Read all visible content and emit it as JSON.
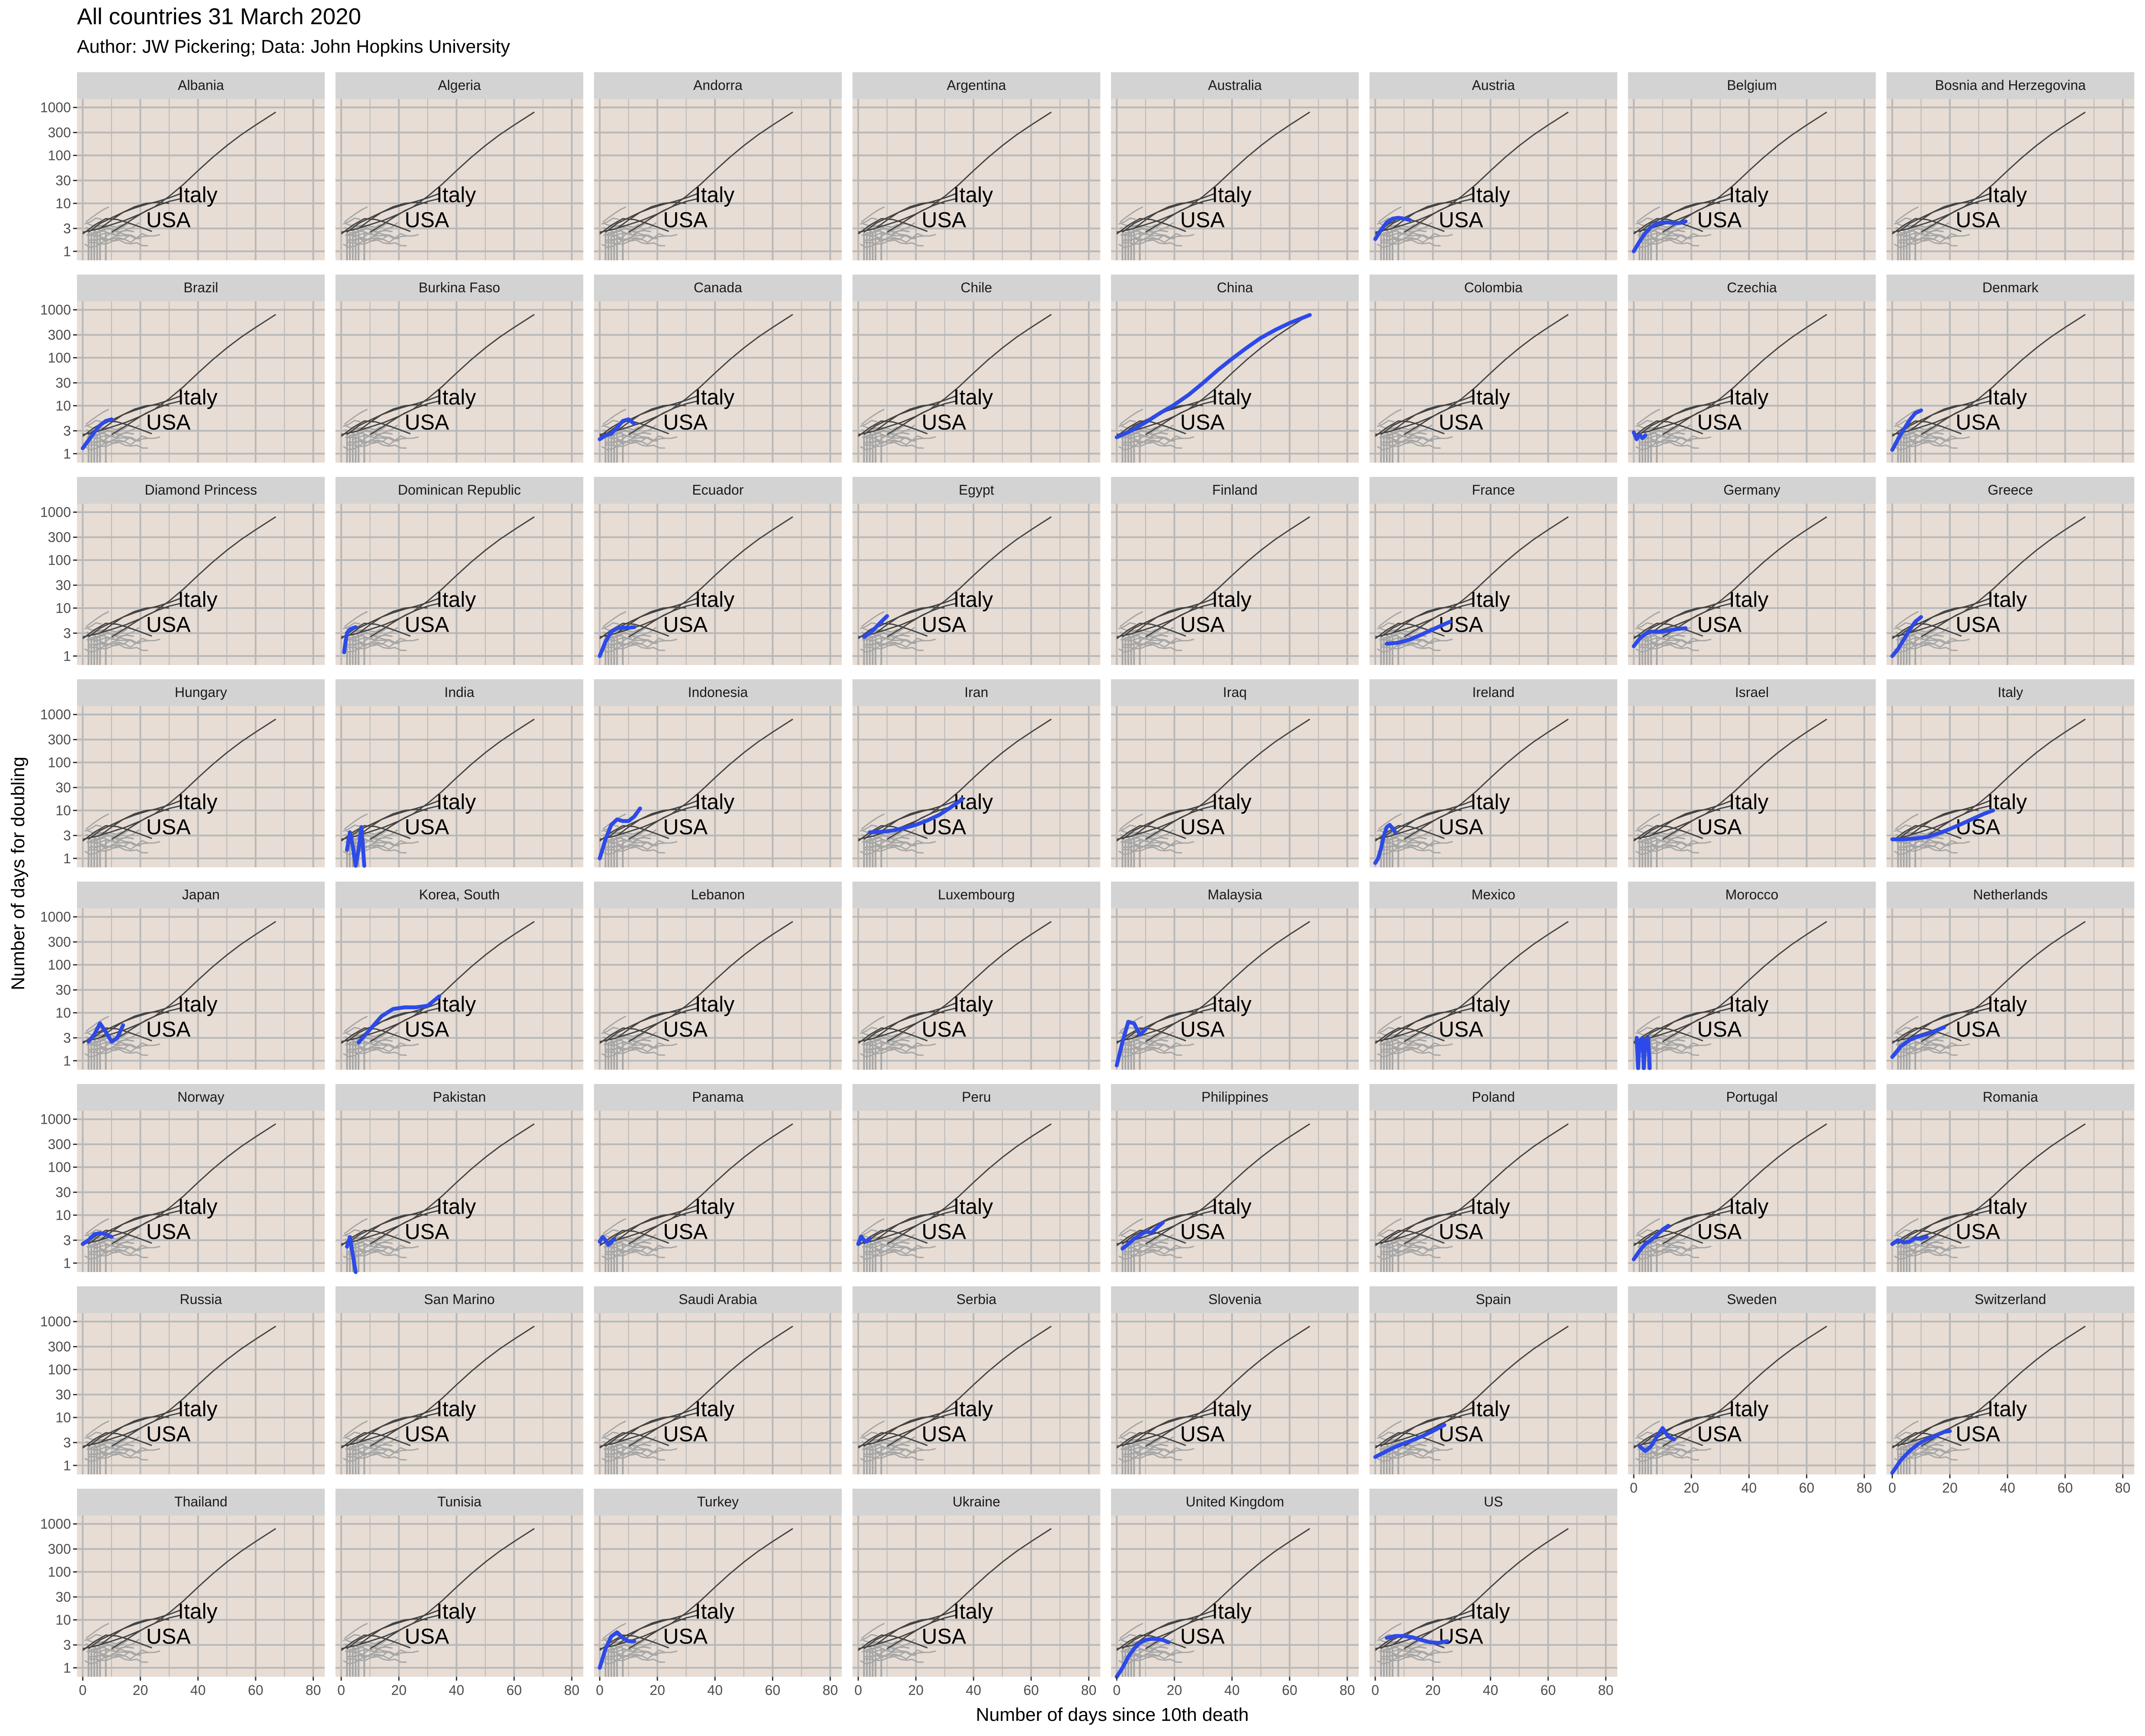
{
  "chart_data": {
    "type": "line",
    "title": "All countries 31 March 2020",
    "subtitle": "Author: JW Pickering; Data: John Hopkins University",
    "xlabel": "Number of days since 10th death",
    "ylabel": "Number of days for doubling",
    "xlim": [
      -2,
      84
    ],
    "x_ticks": [
      0,
      20,
      40,
      60,
      80
    ],
    "y_scale": "log10",
    "ylim": [
      0.65,
      1500
    ],
    "y_ticks": [
      1,
      3,
      10,
      30,
      100,
      300,
      1000
    ],
    "grid": true,
    "legend": "none",
    "colors": {
      "panel_background": "#e7ddd5",
      "grid": "#b8b8b8",
      "strip_background": "#d3d3d3",
      "highlight": "#2d4ae8",
      "reference_lines": "#444444",
      "other_countries": "#a6a6a6"
    },
    "annotations": [
      {
        "text": "Italy",
        "x": 33,
        "y": 14
      },
      {
        "text": "USA",
        "x": 22,
        "y": 4.2
      }
    ],
    "reference_series": [
      {
        "name": "Italy",
        "x": [
          0,
          5,
          10,
          15,
          20,
          25,
          30,
          35,
          40,
          45,
          50,
          55,
          60,
          67
        ],
        "y": [
          2.5,
          2.9,
          3.6,
          4.5,
          6,
          8.5,
          14,
          25,
          48,
          90,
          160,
          270,
          430,
          800
        ]
      },
      {
        "name": "USA",
        "x": [
          0,
          4,
          8,
          12,
          16,
          20,
          24
        ],
        "y": [
          2.3,
          3.5,
          4.8,
          4.6,
          3.9,
          3.2,
          2.6
        ]
      },
      {
        "name": "",
        "x": [
          2,
          6,
          10,
          14,
          18,
          22,
          26,
          30,
          34
        ],
        "y": [
          2.5,
          3.8,
          5,
          6.5,
          8,
          9.5,
          11,
          13,
          16
        ]
      },
      {
        "name": "",
        "x": [
          6,
          10,
          14,
          18,
          22,
          26,
          30
        ],
        "y": [
          3,
          4.5,
          6.5,
          8.5,
          10,
          10.5,
          10
        ]
      },
      {
        "name": "",
        "x": [
          10,
          14,
          18,
          22,
          26,
          30,
          34
        ],
        "y": [
          2.5,
          3.5,
          5,
          7,
          9,
          11,
          12.5
        ]
      }
    ],
    "panels": [
      {
        "country": "Albania",
        "x": [],
        "y": []
      },
      {
        "country": "Algeria",
        "x": [],
        "y": []
      },
      {
        "country": "Andorra",
        "x": [],
        "y": []
      },
      {
        "country": "Argentina",
        "x": [],
        "y": []
      },
      {
        "country": "Australia",
        "x": [],
        "y": []
      },
      {
        "country": "Austria",
        "x": [
          0,
          2,
          4,
          6,
          8,
          10,
          12
        ],
        "y": [
          1.8,
          2.8,
          4,
          4.8,
          5,
          4.8,
          4.5
        ]
      },
      {
        "country": "Belgium",
        "x": [
          0,
          2,
          4,
          6,
          8,
          10,
          12,
          14,
          16,
          18
        ],
        "y": [
          1,
          1.6,
          2.4,
          3.2,
          3.8,
          4,
          4,
          3.9,
          3.9,
          4.2
        ]
      },
      {
        "country": "Bosnia and Herzegovina",
        "x": [],
        "y": []
      },
      {
        "country": "Brazil",
        "x": [
          0,
          2,
          4,
          6,
          8,
          10
        ],
        "y": [
          1.3,
          1.9,
          2.8,
          3.9,
          4.8,
          5.2
        ]
      },
      {
        "country": "Burkina Faso",
        "x": [],
        "y": []
      },
      {
        "country": "Canada",
        "x": [
          0,
          2,
          4,
          6,
          8,
          10,
          12
        ],
        "y": [
          2,
          2.4,
          2.6,
          3.5,
          4.8,
          5.2,
          4.2
        ]
      },
      {
        "country": "Chile",
        "x": [],
        "y": []
      },
      {
        "country": "China",
        "x": [
          0,
          5,
          10,
          15,
          20,
          25,
          30,
          35,
          40,
          45,
          50,
          55,
          60,
          67
        ],
        "y": [
          2.2,
          3,
          4.5,
          7,
          10.5,
          17,
          30,
          55,
          95,
          160,
          260,
          380,
          530,
          780
        ]
      },
      {
        "country": "Colombia",
        "x": [],
        "y": []
      },
      {
        "country": "Czechia",
        "x": [
          0,
          1,
          2,
          3,
          4
        ],
        "y": [
          2.8,
          2,
          2.5,
          2.1,
          2.4
        ]
      },
      {
        "country": "Denmark",
        "x": [
          0,
          2,
          4,
          6,
          8,
          10
        ],
        "y": [
          1.2,
          2,
          3.2,
          5,
          7,
          8
        ]
      },
      {
        "country": "Diamond Princess",
        "x": [],
        "y": []
      },
      {
        "country": "Dominican Republic",
        "x": [
          1,
          1.5,
          2,
          3,
          4,
          5
        ],
        "y": [
          1.2,
          2,
          3,
          3.6,
          3.8,
          4
        ]
      },
      {
        "country": "Ecuador",
        "x": [
          0,
          2,
          4,
          6,
          8,
          10,
          12
        ],
        "y": [
          1,
          2,
          3.2,
          3.8,
          3.9,
          3.9,
          4
        ]
      },
      {
        "country": "Egypt",
        "x": [
          2,
          4,
          6,
          8,
          10
        ],
        "y": [
          2.5,
          3,
          3.9,
          5.2,
          6.8
        ]
      },
      {
        "country": "Finland",
        "x": [],
        "y": []
      },
      {
        "country": "France",
        "x": [
          4,
          8,
          12,
          16,
          20,
          24,
          26
        ],
        "y": [
          1.8,
          1.9,
          2.2,
          2.8,
          3.6,
          4.6,
          5.2
        ]
      },
      {
        "country": "Germany",
        "x": [
          0,
          2,
          4,
          6,
          8,
          10,
          12,
          14,
          16,
          18
        ],
        "y": [
          1.6,
          2.3,
          2.9,
          3.2,
          3.2,
          3.2,
          3.4,
          3.6,
          3.7,
          3.8
        ]
      },
      {
        "country": "Greece",
        "x": [
          0,
          2,
          4,
          6,
          8,
          10
        ],
        "y": [
          1,
          1.4,
          2.2,
          3.5,
          5.2,
          6.5
        ]
      },
      {
        "country": "Hungary",
        "x": [],
        "y": []
      },
      {
        "country": "India",
        "x": [
          2,
          3,
          4,
          5,
          6,
          7,
          8
        ],
        "y": [
          1.5,
          3.5,
          1.8,
          0.7,
          1.5,
          4.5,
          0.7
        ]
      },
      {
        "country": "Indonesia",
        "x": [
          0,
          2,
          4,
          6,
          8,
          10,
          12,
          14
        ],
        "y": [
          1,
          2.5,
          5,
          6.5,
          6,
          6,
          7.5,
          11
        ]
      },
      {
        "country": "Iran",
        "x": [
          4,
          8,
          12,
          16,
          20,
          24,
          28,
          32,
          36
        ],
        "y": [
          3.5,
          3.6,
          3.8,
          4.3,
          5,
          6.2,
          8,
          11.5,
          17
        ]
      },
      {
        "country": "Iraq",
        "x": [],
        "y": []
      },
      {
        "country": "Ireland",
        "x": [
          0,
          1,
          2,
          3,
          4,
          5,
          6,
          7
        ],
        "y": [
          0.8,
          1,
          1.6,
          3,
          4.5,
          5,
          4.2,
          3.5
        ]
      },
      {
        "country": "Israel",
        "x": [],
        "y": []
      },
      {
        "country": "Italy",
        "x": [
          0,
          4,
          8,
          12,
          16,
          20,
          24,
          28,
          32,
          35
        ],
        "y": [
          2.5,
          2.5,
          2.6,
          2.8,
          3.3,
          4.1,
          5.2,
          6.7,
          8.6,
          10
        ]
      },
      {
        "country": "Japan",
        "x": [
          2,
          4,
          6,
          8,
          10,
          12,
          14
        ],
        "y": [
          2.5,
          3.5,
          6,
          4,
          2.5,
          3,
          5.5
        ]
      },
      {
        "country": "Korea, South",
        "x": [
          6,
          10,
          14,
          18,
          22,
          26,
          30,
          34
        ],
        "y": [
          2.4,
          4.5,
          8.5,
          12,
          13,
          13,
          14,
          22
        ]
      },
      {
        "country": "Lebanon",
        "x": [],
        "y": []
      },
      {
        "country": "Luxembourg",
        "x": [],
        "y": []
      },
      {
        "country": "Malaysia",
        "x": [
          0,
          2,
          4,
          6,
          8,
          10
        ],
        "y": [
          0.8,
          2.5,
          6.5,
          6,
          3.5,
          4.5
        ]
      },
      {
        "country": "Mexico",
        "x": [],
        "y": []
      },
      {
        "country": "Morocco",
        "x": [
          1,
          1.5,
          2,
          3,
          3.5,
          4,
          5,
          5.5
        ],
        "y": [
          3,
          0.7,
          2.5,
          3,
          0.7,
          2.5,
          3,
          0.7
        ]
      },
      {
        "country": "Netherlands",
        "x": [
          0,
          3,
          6,
          9,
          12,
          15,
          18
        ],
        "y": [
          1.2,
          2,
          2.7,
          3.2,
          3.6,
          4.2,
          5
        ]
      },
      {
        "country": "Norway",
        "x": [
          0,
          2,
          4,
          6,
          8,
          10
        ],
        "y": [
          2.5,
          3,
          4,
          4.2,
          4,
          3.5
        ]
      },
      {
        "country": "Pakistan",
        "x": [
          2,
          3,
          4,
          5
        ],
        "y": [
          2.2,
          3.5,
          1.5,
          0.6
        ]
      },
      {
        "country": "Panama",
        "x": [
          0,
          1,
          2,
          3,
          4,
          5
        ],
        "y": [
          2.8,
          3.5,
          3,
          2.4,
          2.7,
          3.2
        ]
      },
      {
        "country": "Peru",
        "x": [
          0,
          1,
          2,
          3,
          4
        ],
        "y": [
          2.5,
          3.6,
          3,
          2.8,
          3.2
        ]
      },
      {
        "country": "Philippines",
        "x": [
          2,
          4,
          6,
          8,
          10,
          12,
          14,
          16
        ],
        "y": [
          2,
          2.5,
          3.2,
          3.8,
          4.5,
          4.3,
          5.5,
          7
        ]
      },
      {
        "country": "Poland",
        "x": [],
        "y": []
      },
      {
        "country": "Portugal",
        "x": [
          0,
          2,
          4,
          6,
          8,
          10,
          12
        ],
        "y": [
          1.2,
          1.8,
          2.5,
          3,
          3.8,
          5,
          6
        ]
      },
      {
        "country": "Romania",
        "x": [
          0,
          2,
          4,
          6,
          8,
          10,
          12
        ],
        "y": [
          2.5,
          3,
          2.7,
          2.8,
          3.3,
          3.2,
          3.5
        ]
      },
      {
        "country": "Russia",
        "x": [],
        "y": []
      },
      {
        "country": "San Marino",
        "x": [],
        "y": []
      },
      {
        "country": "Saudi Arabia",
        "x": [],
        "y": []
      },
      {
        "country": "Serbia",
        "x": [],
        "y": []
      },
      {
        "country": "Slovenia",
        "x": [],
        "y": []
      },
      {
        "country": "Spain",
        "x": [
          0,
          4,
          8,
          12,
          16,
          20,
          24
        ],
        "y": [
          1.5,
          2,
          2.6,
          3.2,
          4,
          5.2,
          7
        ]
      },
      {
        "country": "Sweden",
        "x": [
          2,
          4,
          6,
          8,
          10,
          12,
          14
        ],
        "y": [
          2.5,
          2,
          2.5,
          4,
          6,
          4,
          3.5
        ]
      },
      {
        "country": "Switzerland",
        "x": [
          0,
          3,
          6,
          9,
          12,
          15,
          18,
          20
        ],
        "y": [
          0.7,
          1.3,
          2,
          2.8,
          3.5,
          4.2,
          5,
          5.2
        ]
      },
      {
        "country": "Thailand",
        "x": [],
        "y": []
      },
      {
        "country": "Tunisia",
        "x": [],
        "y": []
      },
      {
        "country": "Turkey",
        "x": [
          0,
          2,
          4,
          6,
          8,
          10,
          12
        ],
        "y": [
          1,
          2.5,
          4.5,
          5.5,
          4.2,
          3.6,
          3.6
        ]
      },
      {
        "country": "Ukraine",
        "x": [],
        "y": []
      },
      {
        "country": "United Kingdom",
        "x": [
          0,
          2,
          4,
          6,
          8,
          10,
          12,
          14,
          16,
          18
        ],
        "y": [
          0.6,
          1,
          1.7,
          2.5,
          3.3,
          3.8,
          4,
          4,
          3.8,
          3.4
        ]
      },
      {
        "country": "US",
        "x": [
          4,
          7,
          10,
          13,
          16,
          19,
          22,
          25
        ],
        "y": [
          4.2,
          4.6,
          4.6,
          4.3,
          3.8,
          3.4,
          3.3,
          3.6
        ]
      }
    ]
  }
}
